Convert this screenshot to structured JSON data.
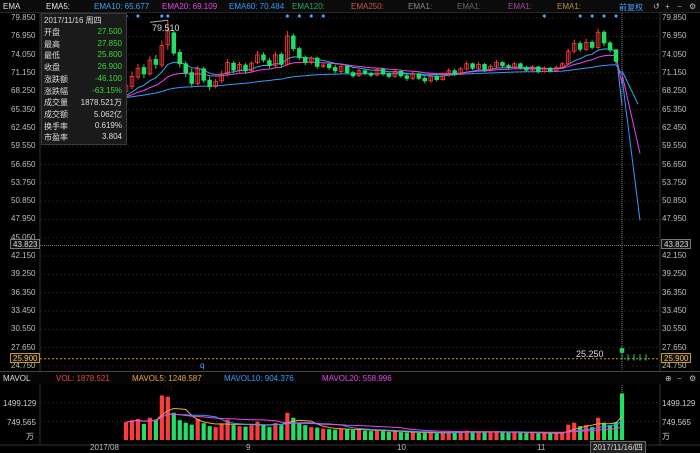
{
  "header": {
    "indicator_name": "EMA",
    "ema5": "EMA5:",
    "ema10": "EMA10: 65.677",
    "ema20": "EMA20: 69.109",
    "ema60": "EMA60: 70.484",
    "ema120": "EMA120:",
    "ema250": "EMA250:",
    "ema_extra1": "EMA1:",
    "ema_extra2": "EMA1:",
    "ema_extra3": "EMA1:",
    "ema_extra4": "EMA1:",
    "adjust_label": "前复权",
    "colors": {
      "ema5": "#e6e6e6",
      "ema10": "#33aaee",
      "ema20": "#ee44ee",
      "ema60": "#3399ff",
      "ema120": "#22aa66",
      "ema250": "#cc5544",
      "extra1": "#888888",
      "extra2": "#aa44aa",
      "extra3": "#bb8844"
    }
  },
  "price_axis": {
    "labels": [
      "79.850",
      "76.950",
      "74.050",
      "71.150",
      "68.250",
      "65.350",
      "62.450",
      "59.550",
      "56.650",
      "53.750",
      "50.850",
      "47.950",
      "45.050",
      "42.150",
      "39.250",
      "36.350",
      "33.450",
      "30.550",
      "27.650",
      "24.750"
    ],
    "right_labels": [
      "79.850",
      "76.950",
      "74.050",
      "71.150",
      "68.250",
      "65.350",
      "62.450",
      "59.550",
      "56.650",
      "53.750",
      "50.850",
      "47.950",
      "42.150",
      "39.250",
      "36.350",
      "33.450",
      "30.550",
      "27.650",
      "24.750"
    ],
    "crosshair_value": "43.823",
    "current_price": "25.900",
    "last_close_label": "25.250",
    "high_marker": "79.510",
    "cursor_marker": "q"
  },
  "info_panel": {
    "date": "2017/11/16 周四",
    "rows": [
      {
        "label": "开盘",
        "value": "27.500",
        "color": "#33dd33"
      },
      {
        "label": "最高",
        "value": "27.850",
        "color": "#33dd33"
      },
      {
        "label": "最低",
        "value": "25.800",
        "color": "#33dd33"
      },
      {
        "label": "收盘",
        "value": "26.900",
        "color": "#33dd33"
      },
      {
        "label": "涨跌额",
        "value": "-46.100",
        "color": "#33dd33"
      },
      {
        "label": "涨跌幅",
        "value": "-63.15%",
        "color": "#33dd33"
      },
      {
        "label": "成交量",
        "value": "1878.521万",
        "color": "#dddddd"
      },
      {
        "label": "成交额",
        "value": "5.062亿",
        "color": "#dddddd"
      },
      {
        "label": "换手率",
        "value": "0.619%",
        "color": "#dddddd"
      },
      {
        "label": "市盈率",
        "value": "3.804",
        "color": "#dddddd"
      }
    ]
  },
  "volume_header": {
    "name": "MAVOL",
    "vol": "VOL: 1878.521",
    "mavol5": "MAVOL5: 1248.587",
    "mavol10": "MAVOL10: 904.376",
    "mavol20": "MAVOL20: 558.996",
    "colors": {
      "vol": "#ee4444",
      "mavol5": "#eeaa33",
      "mavol10": "#3399ff",
      "mavol20": "#ee44ee"
    }
  },
  "volume_axis": {
    "left": [
      "1499.129",
      "749.565",
      "万"
    ],
    "right": [
      "1499.129",
      "749.565",
      "万"
    ]
  },
  "x_axis": {
    "labels": [
      "2017/08",
      "9",
      "10",
      "11"
    ],
    "cursor_date": "2017/11/16/四"
  },
  "chart_data": {
    "type": "candlestick",
    "y_range": [
      24.75,
      79.85
    ],
    "volume_range_wan": [
      0,
      2100
    ],
    "daily_candles_open_close_high_low_volume_wan": [
      [
        68.2,
        69.2,
        69.8,
        67.5,
        720
      ],
      [
        69.0,
        70.6,
        71.4,
        68.6,
        800
      ],
      [
        70.5,
        71.9,
        72.6,
        70.1,
        850
      ],
      [
        72.0,
        71.0,
        72.5,
        70.3,
        650
      ],
      [
        71.0,
        73.2,
        73.8,
        70.7,
        900
      ],
      [
        73.3,
        72.5,
        74.0,
        71.8,
        820
      ],
      [
        72.4,
        75.5,
        76.3,
        72.0,
        1800
      ],
      [
        75.6,
        77.8,
        79.5,
        74.8,
        1750
      ],
      [
        77.5,
        74.3,
        77.9,
        73.9,
        1100
      ],
      [
        74.4,
        72.6,
        74.9,
        72.0,
        800
      ],
      [
        72.6,
        71.2,
        73.0,
        70.5,
        700
      ],
      [
        71.2,
        69.5,
        71.8,
        69.0,
        620
      ],
      [
        69.5,
        71.8,
        72.3,
        69.2,
        860
      ],
      [
        71.8,
        70.0,
        72.1,
        69.6,
        680
      ],
      [
        70.0,
        69.0,
        70.6,
        68.4,
        560
      ],
      [
        69.0,
        69.8,
        70.2,
        68.7,
        520
      ],
      [
        69.9,
        71.0,
        71.5,
        69.5,
        640
      ],
      [
        71.0,
        72.8,
        73.3,
        70.6,
        820
      ],
      [
        72.7,
        71.6,
        73.0,
        71.1,
        600
      ],
      [
        71.6,
        72.5,
        72.9,
        71.2,
        560
      ],
      [
        72.4,
        71.5,
        72.7,
        71.0,
        540
      ],
      [
        71.5,
        72.7,
        73.0,
        71.2,
        600
      ],
      [
        72.8,
        74.0,
        74.6,
        72.5,
        740
      ],
      [
        74.0,
        73.2,
        74.4,
        72.8,
        600
      ],
      [
        73.1,
        72.3,
        73.5,
        71.9,
        520
      ],
      [
        72.3,
        74.0,
        74.5,
        72.0,
        680
      ],
      [
        74.1,
        72.5,
        74.4,
        72.0,
        600
      ],
      [
        72.5,
        77.0,
        77.8,
        72.3,
        1100
      ],
      [
        77.0,
        75.0,
        77.4,
        74.6,
        900
      ],
      [
        75.0,
        73.6,
        75.3,
        73.2,
        700
      ],
      [
        73.6,
        72.8,
        73.9,
        72.4,
        600
      ],
      [
        72.8,
        73.5,
        73.8,
        72.5,
        520
      ],
      [
        73.5,
        72.2,
        73.7,
        71.8,
        500
      ],
      [
        72.2,
        72.4,
        72.8,
        71.9,
        460
      ],
      [
        72.5,
        72.0,
        72.8,
        71.6,
        440
      ],
      [
        72.0,
        71.5,
        72.4,
        71.1,
        420
      ],
      [
        71.4,
        72.2,
        72.5,
        71.0,
        460
      ],
      [
        72.2,
        71.2,
        72.4,
        70.9,
        430
      ],
      [
        71.2,
        70.7,
        71.5,
        70.4,
        400
      ],
      [
        70.7,
        71.5,
        71.8,
        70.5,
        420
      ],
      [
        71.5,
        71.1,
        71.8,
        70.8,
        380
      ],
      [
        71.1,
        70.8,
        71.3,
        70.5,
        360
      ],
      [
        70.8,
        71.7,
        72.0,
        70.6,
        400
      ],
      [
        71.7,
        71.0,
        72.0,
        70.7,
        360
      ],
      [
        71.0,
        70.6,
        71.2,
        70.3,
        330
      ],
      [
        70.6,
        71.4,
        71.7,
        70.4,
        350
      ],
      [
        71.4,
        70.7,
        71.6,
        70.4,
        320
      ],
      [
        70.7,
        70.3,
        71.0,
        69.9,
        300
      ],
      [
        70.3,
        71.0,
        71.3,
        70.0,
        320
      ],
      [
        71.0,
        70.3,
        71.2,
        70.0,
        290
      ],
      [
        70.3,
        69.9,
        70.6,
        69.5,
        280
      ],
      [
        69.9,
        70.6,
        71.0,
        69.6,
        300
      ],
      [
        70.6,
        70.1,
        70.9,
        69.8,
        270
      ],
      [
        70.1,
        70.9,
        71.2,
        69.9,
        300
      ],
      [
        70.9,
        71.5,
        71.9,
        70.6,
        330
      ],
      [
        71.5,
        71.0,
        71.8,
        70.7,
        300
      ],
      [
        71.0,
        71.8,
        72.1,
        70.8,
        340
      ],
      [
        71.8,
        72.6,
        73.0,
        71.5,
        380
      ],
      [
        72.6,
        71.9,
        72.8,
        71.6,
        320
      ],
      [
        71.9,
        72.5,
        72.9,
        71.7,
        330
      ],
      [
        72.5,
        71.6,
        72.7,
        71.3,
        310
      ],
      [
        71.6,
        72.2,
        72.5,
        71.4,
        320
      ],
      [
        72.2,
        72.8,
        73.2,
        71.9,
        360
      ],
      [
        72.8,
        72.3,
        73.0,
        72.0,
        320
      ],
      [
        72.3,
        72.0,
        72.6,
        71.7,
        300
      ],
      [
        72.0,
        72.6,
        72.9,
        71.8,
        320
      ],
      [
        72.6,
        72.0,
        72.8,
        71.7,
        300
      ],
      [
        72.0,
        71.6,
        72.3,
        71.3,
        280
      ],
      [
        71.6,
        72.1,
        72.4,
        71.4,
        300
      ],
      [
        72.1,
        71.4,
        72.3,
        71.1,
        270
      ],
      [
        71.4,
        71.9,
        72.2,
        71.2,
        280
      ],
      [
        71.9,
        71.5,
        72.1,
        71.2,
        260
      ],
      [
        71.5,
        72.0,
        72.3,
        71.3,
        280
      ],
      [
        72.0,
        72.6,
        72.9,
        71.8,
        310
      ],
      [
        72.6,
        74.6,
        75.0,
        72.4,
        620
      ],
      [
        74.6,
        75.8,
        76.4,
        74.2,
        700
      ],
      [
        75.8,
        74.9,
        76.2,
        74.5,
        560
      ],
      [
        74.9,
        76.0,
        76.6,
        74.6,
        600
      ],
      [
        76.0,
        75.2,
        76.3,
        74.9,
        520
      ],
      [
        75.2,
        77.6,
        78.2,
        74.9,
        900
      ],
      [
        77.6,
        75.9,
        77.9,
        75.4,
        700
      ],
      [
        75.9,
        74.8,
        76.2,
        74.4,
        600
      ],
      [
        74.8,
        73.0,
        75.0,
        72.6,
        720
      ],
      [
        27.5,
        26.9,
        27.85,
        25.8,
        1878.521
      ]
    ]
  }
}
